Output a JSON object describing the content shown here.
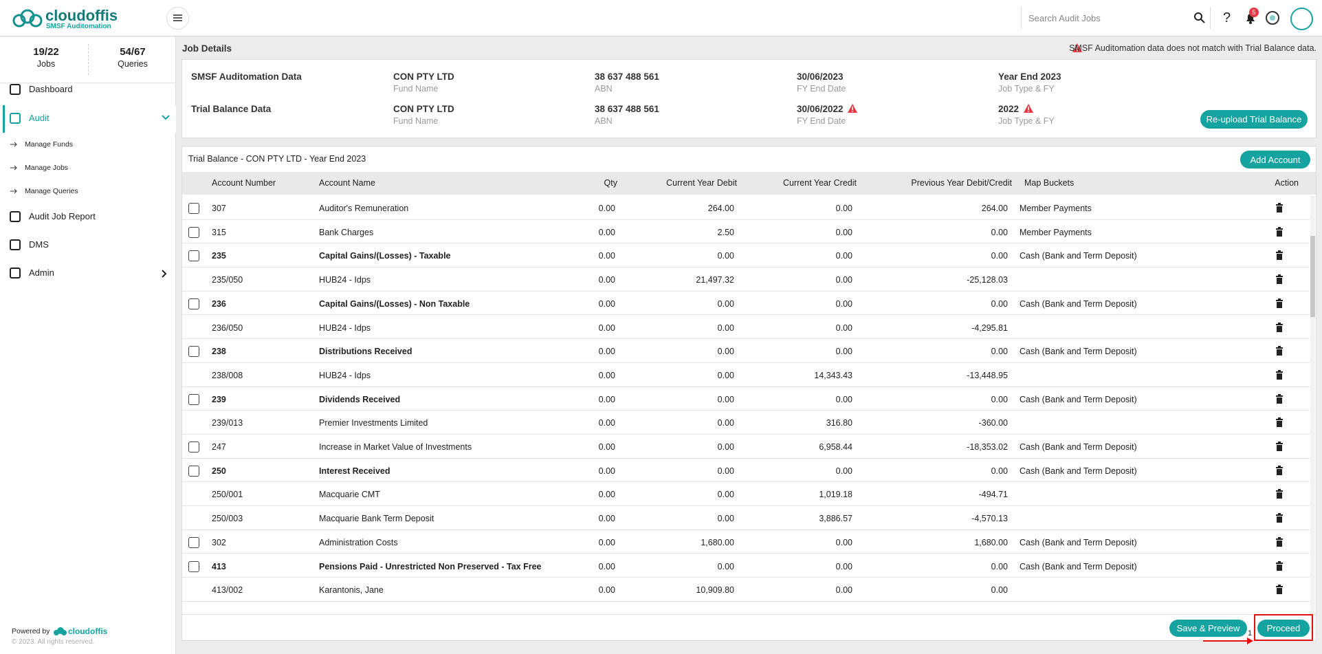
{
  "header": {
    "logo": "cloudoffis",
    "logo_sub": "SMSF Auditomation",
    "search_placeholder": "Search Audit Jobs",
    "notifications": "5"
  },
  "sidebar": {
    "stats": [
      {
        "value": "19/22",
        "label": "Jobs"
      },
      {
        "value": "54/67",
        "label": "Queries"
      }
    ],
    "menu": [
      "Dashboard",
      "Audit",
      "Manage Funds",
      "Manage Jobs",
      "Manage Queries",
      "Audit Job Report",
      "DMS",
      "Admin"
    ],
    "powered_by": "Powered by",
    "brand": "cloudoffis",
    "copyright": "© 2023. All rights reserved."
  },
  "job_details": {
    "title": "Job Details",
    "warning": "SMSF Auditomation data does not match with Trial Balance data.",
    "rows": [
      {
        "label": "SMSF Auditomation Data",
        "fields": [
          {
            "value": "CON PTY LTD",
            "caption": "Fund Name"
          },
          {
            "value": "38 637 488 561",
            "caption": "ABN"
          },
          {
            "value": "30/06/2023",
            "caption": "FY End Date"
          },
          {
            "value": "Year End 2023",
            "caption": "Job Type & FY"
          }
        ]
      },
      {
        "label": "Trial Balance Data",
        "fields": [
          {
            "value": "CON PTY LTD",
            "caption": "Fund Name"
          },
          {
            "value": "38 637 488 561",
            "caption": "ABN"
          },
          {
            "value": "30/06/2022",
            "caption": "FY End Date",
            "warn": true
          },
          {
            "value": "2022",
            "caption": "Job Type & FY",
            "warn": true
          }
        ]
      }
    ],
    "button": "Re-upload Trial Balance"
  },
  "table": {
    "title": "Trial Balance - CON PTY LTD - Year End 2023",
    "add_button": "Add Account",
    "columns": [
      "Account Number",
      "Account Name",
      "Qty",
      "Current Year Debit",
      "Current Year Credit",
      "Previous Year Debit/Credit",
      "Map Buckets",
      "Action"
    ],
    "rows": [
      {
        "checkbox": true,
        "bold": false,
        "cells": [
          "307",
          "Auditor's Remuneration",
          "0.00",
          "264.00",
          "0.00",
          "264.00",
          "Member Payments"
        ]
      },
      {
        "checkbox": true,
        "bold": false,
        "cells": [
          "315",
          "Bank Charges",
          "0.00",
          "2.50",
          "0.00",
          "0.00",
          "Member Payments"
        ]
      },
      {
        "checkbox": true,
        "bold": true,
        "cells": [
          "235",
          "Capital Gains/(Losses) - Taxable",
          "0.00",
          "0.00",
          "0.00",
          "0.00",
          "Cash (Bank and Term Deposit)"
        ]
      },
      {
        "checkbox": false,
        "bold": false,
        "cells": [
          "235/050",
          "HUB24 - Idps",
          "0.00",
          "21,497.32",
          "0.00",
          "-25,128.03",
          ""
        ]
      },
      {
        "checkbox": true,
        "bold": true,
        "cells": [
          "236",
          "Capital Gains/(Losses) - Non Taxable",
          "0.00",
          "0.00",
          "0.00",
          "0.00",
          "Cash (Bank and Term Deposit)"
        ]
      },
      {
        "checkbox": false,
        "bold": false,
        "cells": [
          "236/050",
          "HUB24 - Idps",
          "0.00",
          "0.00",
          "0.00",
          "-4,295.81",
          ""
        ]
      },
      {
        "checkbox": true,
        "bold": true,
        "cells": [
          "238",
          "Distributions Received",
          "0.00",
          "0.00",
          "0.00",
          "0.00",
          "Cash (Bank and Term Deposit)"
        ]
      },
      {
        "checkbox": false,
        "bold": false,
        "cells": [
          "238/008",
          "HUB24 - Idps",
          "0.00",
          "0.00",
          "14,343.43",
          "-13,448.95",
          ""
        ]
      },
      {
        "checkbox": true,
        "bold": true,
        "cells": [
          "239",
          "Dividends Received",
          "0.00",
          "0.00",
          "0.00",
          "0.00",
          "Cash (Bank and Term Deposit)"
        ]
      },
      {
        "checkbox": false,
        "bold": false,
        "cells": [
          "239/013",
          "Premier Investments Limited",
          "0.00",
          "0.00",
          "316.80",
          "-360.00",
          ""
        ]
      },
      {
        "checkbox": true,
        "bold": false,
        "cells": [
          "247",
          "Increase in Market Value of Investments",
          "0.00",
          "0.00",
          "6,958.44",
          "-18,353.02",
          "Cash (Bank and Term Deposit)"
        ]
      },
      {
        "checkbox": true,
        "bold": true,
        "cells": [
          "250",
          "Interest Received",
          "0.00",
          "0.00",
          "0.00",
          "0.00",
          "Cash (Bank and Term Deposit)"
        ]
      },
      {
        "checkbox": false,
        "bold": false,
        "cells": [
          "250/001",
          "Macquarie CMT",
          "0.00",
          "0.00",
          "1,019.18",
          "-494.71",
          ""
        ]
      },
      {
        "checkbox": false,
        "bold": false,
        "cells": [
          "250/003",
          "Macquarie Bank Term Deposit",
          "0.00",
          "0.00",
          "3,886.57",
          "-4,570.13",
          ""
        ]
      },
      {
        "checkbox": true,
        "bold": false,
        "cells": [
          "302",
          "Administration Costs",
          "0.00",
          "1,680.00",
          "0.00",
          "1,680.00",
          "Cash (Bank and Term Deposit)"
        ]
      },
      {
        "checkbox": true,
        "bold": true,
        "cells": [
          "413",
          "Pensions Paid - Unrestricted Non Preserved - Tax Free",
          "0.00",
          "0.00",
          "0.00",
          "0.00",
          "Cash (Bank and Term Deposit)"
        ]
      },
      {
        "checkbox": false,
        "bold": false,
        "cells": [
          "413/002",
          "Karantonis, Jane",
          "0.00",
          "10,909.80",
          "0.00",
          "0.00",
          ""
        ]
      }
    ]
  },
  "footer": {
    "save_button": "Save & Preview",
    "proceed_button": "Proceed",
    "annotation": "1"
  }
}
